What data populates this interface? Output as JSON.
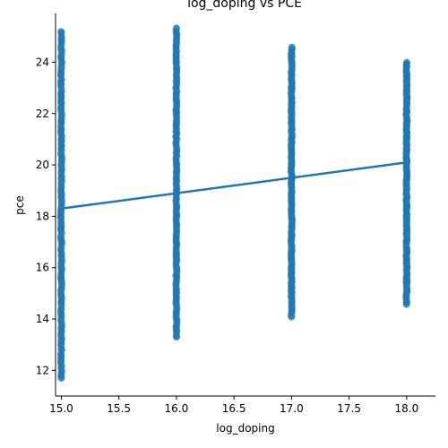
{
  "chart_data": {
    "type": "scatter",
    "title": "log_doping vs PCE",
    "xlabel": "log_doping",
    "ylabel": "pce",
    "xlim": [
      14.95,
      18.25
    ],
    "ylim": [
      11.0,
      25.9
    ],
    "xticks": [
      "15.0",
      "15.5",
      "16.0",
      "16.5",
      "17.0",
      "17.5",
      "18.0"
    ],
    "yticks": [
      "12",
      "14",
      "16",
      "18",
      "20",
      "22",
      "24"
    ],
    "grid": false,
    "legend": "none",
    "colors": {
      "points": "#1f77b4",
      "line": "#1f77b4"
    },
    "groups": [
      {
        "x": 15,
        "y_min": 11.7,
        "y_max": 25.2
      },
      {
        "x": 16,
        "y_min": 13.3,
        "y_max": 25.3
      },
      {
        "x": 17,
        "y_min": 14.1,
        "y_max": 24.6
      },
      {
        "x": 18,
        "y_min": 14.6,
        "y_max": 24.0
      }
    ],
    "regression": {
      "x": [
        15,
        18
      ],
      "y": [
        18.3,
        20.1
      ]
    }
  }
}
